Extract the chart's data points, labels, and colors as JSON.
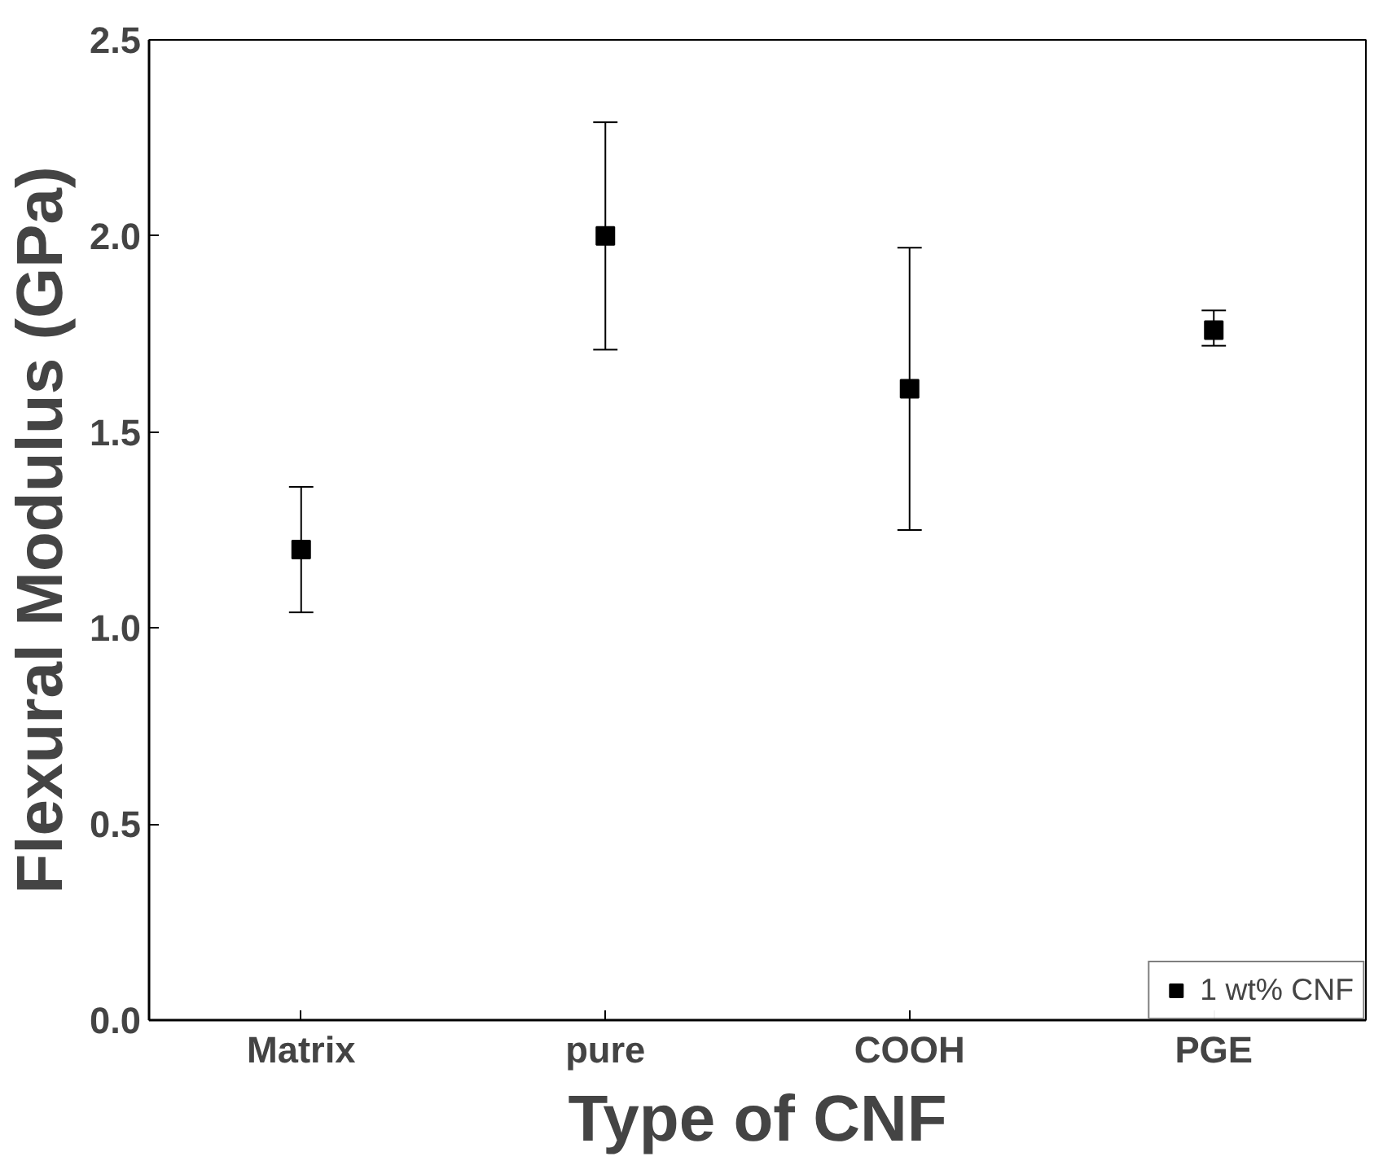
{
  "chart_data": {
    "type": "scatter",
    "xlabel": "Type of CNF",
    "ylabel": "Flexural Modulus (GPa)",
    "categories": [
      "Matrix",
      "pure",
      "COOH",
      "PGE"
    ],
    "series": [
      {
        "name": "1 wt% CNF",
        "color": "#000000",
        "values": [
          1.2,
          2.0,
          1.61,
          1.76
        ],
        "errors": [
          [
            1.04,
            1.36
          ],
          [
            1.71,
            2.29
          ],
          [
            1.25,
            1.97
          ],
          [
            1.72,
            1.81
          ]
        ]
      }
    ],
    "ylim": [
      0,
      2.5
    ],
    "yticks": [
      {
        "value": 0,
        "label": "0.0"
      },
      0.5,
      {
        "value": 1,
        "label": "1.0"
      },
      1.5,
      {
        "value": 2,
        "label": "2.0"
      },
      2.5
    ],
    "marker": "square",
    "grid": false,
    "legend": "bottom right"
  }
}
